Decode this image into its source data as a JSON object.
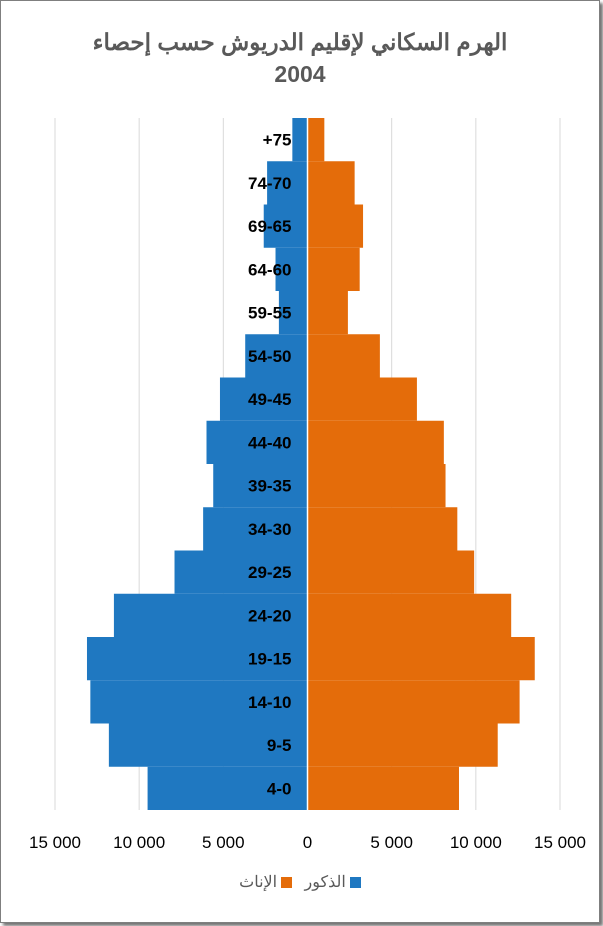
{
  "chart_data": {
    "type": "bar",
    "orientation": "horizontal-population-pyramid",
    "title_line1": "الهرم السكاني لإقليم الدريوش حسب إحصاء",
    "title_line2": "2004",
    "categories": [
      "4-0",
      "9-5",
      "14-10",
      "19-15",
      "24-20",
      "29-25",
      "34-30",
      "39-35",
      "44-40",
      "49-45",
      "54-50",
      "59-55",
      "64-60",
      "69-65",
      "74-70",
      "+75"
    ],
    "series": [
      {
        "name": "الذكور",
        "side": "left",
        "color": "#1f78c1",
        "values": [
          9500,
          11800,
          12900,
          13100,
          11500,
          7900,
          6200,
          5600,
          6000,
          5200,
          3700,
          1700,
          1900,
          2600,
          2400,
          900
        ]
      },
      {
        "name": "الإناث",
        "side": "right",
        "color": "#e46c0a",
        "values": [
          9000,
          11300,
          12600,
          13500,
          12100,
          9900,
          8900,
          8200,
          8100,
          6500,
          4300,
          2400,
          3100,
          3300,
          2800,
          1000
        ]
      }
    ],
    "xlim": [
      -15000,
      15000
    ],
    "x_ticks": [
      -15000,
      -10000,
      -5000,
      0,
      5000,
      10000,
      15000
    ],
    "x_tick_labels": [
      "15 000",
      "10 000",
      "5 000",
      "0",
      "5 000",
      "10 000",
      "15 000"
    ],
    "grid": "vertical",
    "legend_position": "bottom"
  }
}
